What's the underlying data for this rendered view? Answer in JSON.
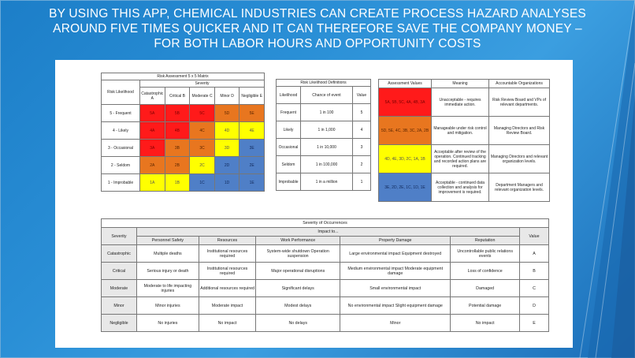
{
  "slide": {
    "title_line1": "BY USING THIS APP, CHEMICAL INDUSTRIES CAN CREATE PROCESS HAZARD ANALYSES",
    "title_line2": "AROUND FIVE TIMES QUICKER AND IT CAN THEREFORE SAVE THE COMPANY MONEY –",
    "title_line3": "FOR BOTH LABOR HOURS AND OPPORTUNITY COSTS"
  },
  "matrix": {
    "title": "Risk Assessment 5 x 5 Matrix",
    "corner": "Risk Likelihood",
    "severity": "Severity",
    "cols": [
      "Catastrophic A",
      "Critical B",
      "Moderate C",
      "Minor D",
      "Negligible E"
    ],
    "rows": [
      {
        "label": "5 - Frequent",
        "cells": [
          "5A",
          "5B",
          "5C",
          "5D",
          "5E"
        ]
      },
      {
        "label": "4 - Likely",
        "cells": [
          "4A",
          "4B",
          "4C",
          "4D",
          "4E"
        ]
      },
      {
        "label": "3 - Occasional",
        "cells": [
          "3A",
          "3B",
          "3C",
          "3D",
          "3E"
        ]
      },
      {
        "label": "2 - Seldom",
        "cells": [
          "2A",
          "2B",
          "2C",
          "2D",
          "2E"
        ]
      },
      {
        "label": "1 - Improbable",
        "cells": [
          "1A",
          "1B",
          "1C",
          "1D",
          "1E"
        ]
      }
    ]
  },
  "likelihood": {
    "title": "Risk Likelihood Definitions",
    "h1": "Likelihood",
    "h2": "Chance of event",
    "h3": "Value",
    "rows": [
      {
        "l": "Frequent",
        "c": "1 in 100",
        "v": "5"
      },
      {
        "l": "Likely",
        "c": "1 in 1,000",
        "v": "4"
      },
      {
        "l": "Occasional",
        "c": "1 in 10,000",
        "v": "3"
      },
      {
        "l": "Seldom",
        "c": "1 in 100,000",
        "v": "2"
      },
      {
        "l": "Improbable",
        "c": "1 in a million",
        "v": "1"
      }
    ]
  },
  "assessment": {
    "h1": "Assessment Values",
    "h2": "Meaning",
    "h3": "Accountable Organizations",
    "rows": [
      {
        "v": "5A, 5B, 5C, 4A, 4B, 3A",
        "m": "Unacceptable - requires immediate action.",
        "o": "Risk Review Board and VPs of relevant departments."
      },
      {
        "v": "5D, 5E, 4C, 3B, 3C, 2A, 2B",
        "m": "Manageable under risk control and mitigation.",
        "o": "Managing Directors and Risk Review Board."
      },
      {
        "v": "4D, 4E, 3D, 2C, 1A, 1B",
        "m": "Acceptable after review of the operation. Continued tracking and recorded action plans are required.",
        "o": "Managing Directors and relevant organization levels."
      },
      {
        "v": "3E, 2D, 2E, 1C, 1D, 1E",
        "m": "Acceptable - continued data collection and analysis for improvement is required.",
        "o": "Department Managers and relevant organization levels."
      }
    ]
  },
  "severity": {
    "title": "Severity of Occurrences",
    "h_sev": "Severity",
    "h_impact": "Impact to...",
    "h_value": "Value",
    "cols": [
      "Personnel Safety",
      "Resources",
      "Work Performance",
      "Property Damage",
      "Reputation"
    ],
    "rows": [
      {
        "s": "Catastrophic",
        "c": [
          "Multiple deaths",
          "Institutional resources required",
          "System-wide shutdown Operation suspension",
          "Large environmental impact Equipment destroyed",
          "Uncontrollable public relations events"
        ],
        "v": "A"
      },
      {
        "s": "Critical",
        "c": [
          "Serious injury or death",
          "Institutional resources required",
          "Major operational disruptions",
          "Medium environmental impact Moderate equipment damage",
          "Loss of confidence"
        ],
        "v": "B"
      },
      {
        "s": "Moderate",
        "c": [
          "Moderate to life impacting injuries",
          "Additional resources required",
          "Significant delays",
          "Small environmental impact",
          "Damaged"
        ],
        "v": "C"
      },
      {
        "s": "Minor",
        "c": [
          "Minor injuries",
          "Moderate impact",
          "Modest delays",
          "No environmental impact Slight equipment damage",
          "Potential damage"
        ],
        "v": "D"
      },
      {
        "s": "Negligible",
        "c": [
          "No injuries",
          "No impact",
          "No delays",
          "Minor",
          "No impact"
        ],
        "v": "E"
      }
    ]
  },
  "colors": {
    "red": "#ff1a1a",
    "orange": "#e8761f",
    "yellow": "#ffff00",
    "blue": "#4f7fc7"
  }
}
